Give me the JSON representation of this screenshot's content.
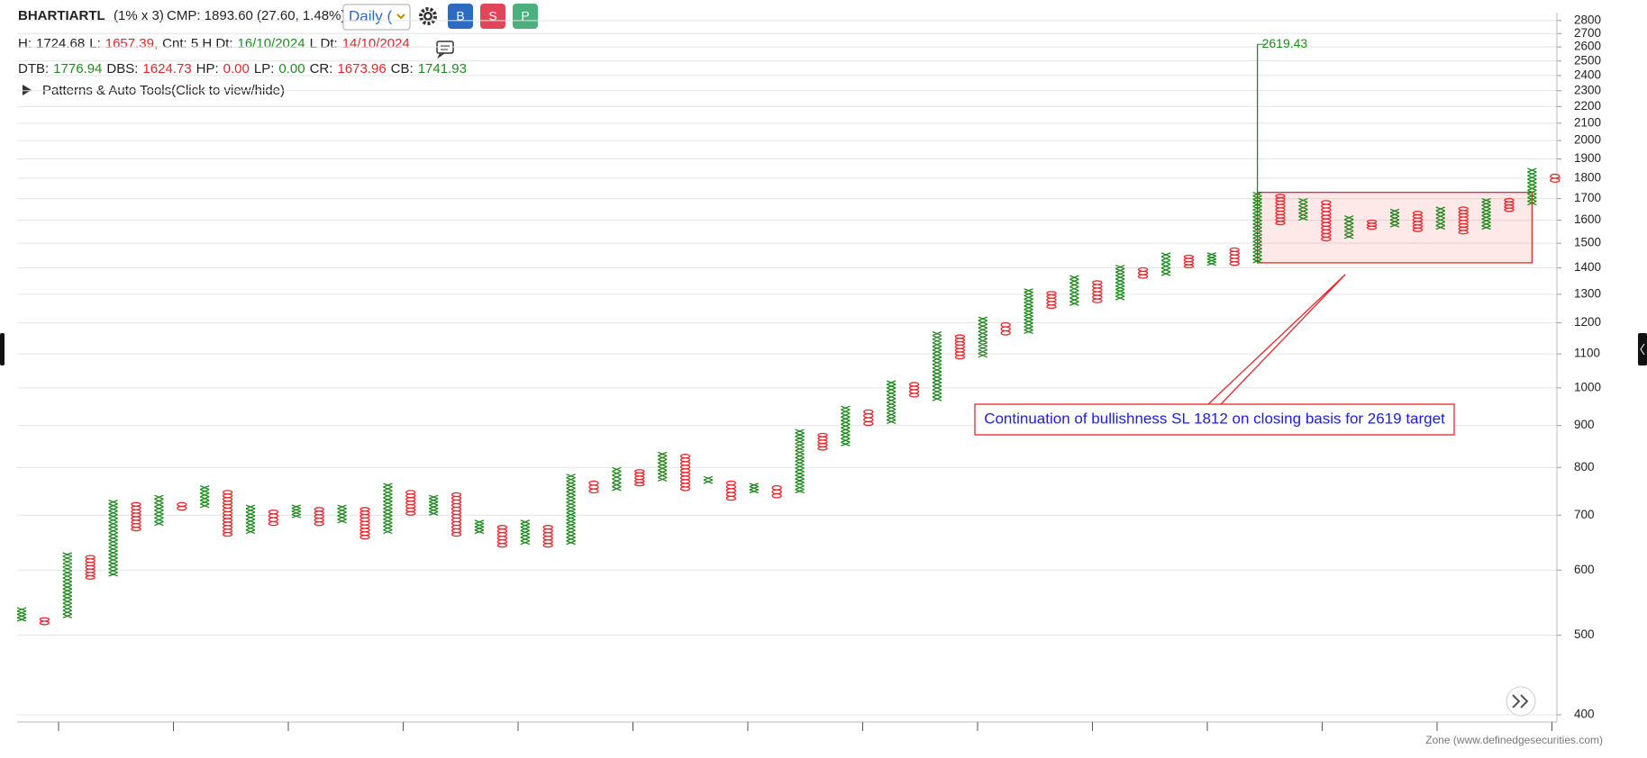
{
  "header": {
    "symbol": "BHARTIARTL",
    "box": "(1% x 3)",
    "cmp": "CMP: 1893.60 (27.60, 1.48%)",
    "cmp_color": "#3cb371",
    "timeframe": "Daily (",
    "buttons": [
      {
        "text": "B",
        "color": "#2d6bc2"
      },
      {
        "text": "S",
        "color": "#e0455a"
      },
      {
        "text": "P",
        "color": "#4caf7d"
      }
    ],
    "row1": [
      {
        "text": "H:",
        "color": "#222"
      },
      {
        "text": "1724.68",
        "color": "#222"
      },
      {
        "text": "L:",
        "color": "#222"
      },
      {
        "text": "1657.39,",
        "color": "#e0262c"
      },
      {
        "text": "Cnt: 5 H Dt:",
        "color": "#222"
      },
      {
        "text": "16/10/2024",
        "color": "#1e8a1e"
      },
      {
        "text": "L Dt:",
        "color": "#222"
      },
      {
        "text": "14/10/2024",
        "color": "#e0262c"
      }
    ],
    "row2": [
      {
        "text": "DTB:",
        "color": "#222"
      },
      {
        "text": "1776.94",
        "color": "#1e8a1e"
      },
      {
        "text": "DBS:",
        "color": "#222"
      },
      {
        "text": "1624.73",
        "color": "#e0262c"
      },
      {
        "text": "HP:",
        "color": "#222"
      },
      {
        "text": "0.00",
        "color": "#e0262c"
      },
      {
        "text": "LP:",
        "color": "#222"
      },
      {
        "text": "0.00",
        "color": "#1e8a1e"
      },
      {
        "text": "CR:",
        "color": "#222"
      },
      {
        "text": "1673.96",
        "color": "#e0262c"
      },
      {
        "text": "CB:",
        "color": "#222"
      },
      {
        "text": "1741.93",
        "color": "#1e8a1e"
      }
    ],
    "patterns": "Patterns & Auto Tools(Click to view/hide)"
  },
  "chart_data": {
    "type": "point_and_figure",
    "log_scale": true,
    "grid": true,
    "x_color": "#1e8a1e",
    "o_color": "#e8262c",
    "ylim": [
      392,
      2863
    ],
    "yticks": [
      400,
      500,
      600,
      700,
      800,
      900,
      1000,
      1100,
      1200,
      1300,
      1400,
      1500,
      1600,
      1700,
      1800,
      1900,
      2000,
      2100,
      2200,
      2300,
      2400,
      2500,
      2600,
      2700,
      2800
    ],
    "columns": [
      {
        "type": "X",
        "low": 520,
        "high": 540
      },
      {
        "type": "O",
        "low": 515,
        "high": 525
      },
      {
        "type": "X",
        "low": 525,
        "high": 630
      },
      {
        "type": "O",
        "low": 585,
        "high": 625
      },
      {
        "type": "X",
        "low": 590,
        "high": 730
      },
      {
        "type": "O",
        "low": 670,
        "high": 725
      },
      {
        "type": "X",
        "low": 680,
        "high": 740
      },
      {
        "type": "O",
        "low": 710,
        "high": 725
      },
      {
        "type": "X",
        "low": 715,
        "high": 760
      },
      {
        "type": "O",
        "low": 660,
        "high": 750
      },
      {
        "type": "X",
        "low": 665,
        "high": 720
      },
      {
        "type": "O",
        "low": 680,
        "high": 710
      },
      {
        "type": "X",
        "low": 695,
        "high": 720
      },
      {
        "type": "O",
        "low": 680,
        "high": 715
      },
      {
        "type": "X",
        "low": 685,
        "high": 720
      },
      {
        "type": "O",
        "low": 655,
        "high": 715
      },
      {
        "type": "X",
        "low": 665,
        "high": 765
      },
      {
        "type": "O",
        "low": 700,
        "high": 750
      },
      {
        "type": "X",
        "low": 700,
        "high": 740
      },
      {
        "type": "O",
        "low": 660,
        "high": 745
      },
      {
        "type": "X",
        "low": 665,
        "high": 690
      },
      {
        "type": "O",
        "low": 640,
        "high": 680
      },
      {
        "type": "X",
        "low": 645,
        "high": 690
      },
      {
        "type": "O",
        "low": 640,
        "high": 680
      },
      {
        "type": "X",
        "low": 645,
        "high": 785
      },
      {
        "type": "O",
        "low": 745,
        "high": 770
      },
      {
        "type": "X",
        "low": 750,
        "high": 800
      },
      {
        "type": "O",
        "low": 760,
        "high": 795
      },
      {
        "type": "X",
        "low": 770,
        "high": 835
      },
      {
        "type": "O",
        "low": 750,
        "high": 830
      },
      {
        "type": "X",
        "low": 765,
        "high": 780
      },
      {
        "type": "O",
        "low": 730,
        "high": 770
      },
      {
        "type": "X",
        "low": 745,
        "high": 765
      },
      {
        "type": "O",
        "low": 735,
        "high": 760
      },
      {
        "type": "X",
        "low": 745,
        "high": 890
      },
      {
        "type": "O",
        "low": 840,
        "high": 880
      },
      {
        "type": "X",
        "low": 850,
        "high": 950
      },
      {
        "type": "O",
        "low": 900,
        "high": 940
      },
      {
        "type": "X",
        "low": 905,
        "high": 1020
      },
      {
        "type": "O",
        "low": 975,
        "high": 1015
      },
      {
        "type": "X",
        "low": 965,
        "high": 1170
      },
      {
        "type": "O",
        "low": 1085,
        "high": 1160
      },
      {
        "type": "X",
        "low": 1090,
        "high": 1220
      },
      {
        "type": "O",
        "low": 1160,
        "high": 1200
      },
      {
        "type": "X",
        "low": 1165,
        "high": 1320
      },
      {
        "type": "O",
        "low": 1250,
        "high": 1310
      },
      {
        "type": "X",
        "low": 1260,
        "high": 1370
      },
      {
        "type": "O",
        "low": 1270,
        "high": 1350
      },
      {
        "type": "X",
        "low": 1280,
        "high": 1410
      },
      {
        "type": "O",
        "low": 1360,
        "high": 1400
      },
      {
        "type": "X",
        "low": 1370,
        "high": 1460
      },
      {
        "type": "O",
        "low": 1400,
        "high": 1450
      },
      {
        "type": "X",
        "low": 1410,
        "high": 1460
      },
      {
        "type": "O",
        "low": 1410,
        "high": 1480
      },
      {
        "type": "X",
        "low": 1420,
        "high": 1730
      },
      {
        "type": "O",
        "low": 1580,
        "high": 1720
      },
      {
        "type": "X",
        "low": 1600,
        "high": 1700
      },
      {
        "type": "O",
        "low": 1510,
        "high": 1690
      },
      {
        "type": "X",
        "low": 1520,
        "high": 1620
      },
      {
        "type": "O",
        "low": 1560,
        "high": 1600
      },
      {
        "type": "X",
        "low": 1570,
        "high": 1650
      },
      {
        "type": "O",
        "low": 1550,
        "high": 1640
      },
      {
        "type": "X",
        "low": 1560,
        "high": 1660
      },
      {
        "type": "O",
        "low": 1540,
        "high": 1660
      },
      {
        "type": "X",
        "low": 1560,
        "high": 1700
      },
      {
        "type": "O",
        "low": 1640,
        "high": 1700
      },
      {
        "type": "X",
        "low": 1670,
        "high": 1850
      },
      {
        "type": "O",
        "low": 1780,
        "high": 1820
      }
    ],
    "zone": {
      "low": 1420,
      "high": 1730
    },
    "target": 2619.43,
    "annotation": "Continuation of bullishness SL 1812 on closing basis for 2619 target",
    "annotation_color": "#1a1aff"
  },
  "footer": "Zone (www.definedgesecurities.com)"
}
